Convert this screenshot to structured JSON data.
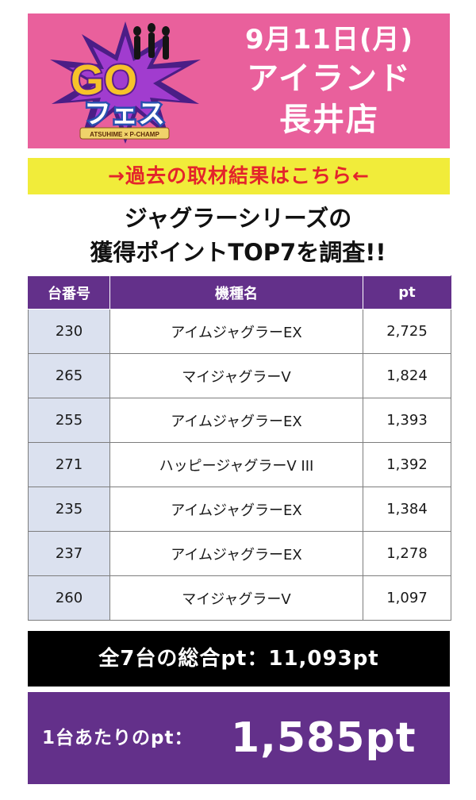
{
  "header": {
    "date": "9月11日(月)",
    "store_line1": "アイランド",
    "store_line2": "長井店",
    "logo": {
      "main_text": "GO",
      "sub_text": "フェス",
      "ribbon_text": "ATSUHIME × P-CHAMP"
    }
  },
  "link_bar": {
    "label": "→過去の取材結果はこちら←"
  },
  "heading": {
    "line1": "ジャグラーシリーズの",
    "line2": "獲得ポイントTOP7を調査!!"
  },
  "table": {
    "headers": [
      "台番号",
      "機種名",
      "pt"
    ],
    "rows": [
      {
        "number": "230",
        "model": "アイムジャグラーEX",
        "pt": "2,725"
      },
      {
        "number": "265",
        "model": "マイジャグラーV",
        "pt": "1,824"
      },
      {
        "number": "255",
        "model": "アイムジャグラーEX",
        "pt": "1,393"
      },
      {
        "number": "271",
        "model": "ハッピージャグラーV III",
        "pt": "1,392"
      },
      {
        "number": "235",
        "model": "アイムジャグラーEX",
        "pt": "1,384"
      },
      {
        "number": "237",
        "model": "アイムジャグラーEX",
        "pt": "1,278"
      },
      {
        "number": "260",
        "model": "マイジャグラーV",
        "pt": "1,097"
      }
    ]
  },
  "total": {
    "label": "全7台の総合pt：11,093pt"
  },
  "average": {
    "label": "1台あたりのpt：",
    "value": "1,585pt"
  },
  "colors": {
    "header_pink": "#e9609c",
    "link_yellow": "#f1ec3a",
    "link_red": "#e3242b",
    "table_purple": "#63308a",
    "number_cell_blue": "#dbe1ef",
    "total_black": "#000000"
  }
}
